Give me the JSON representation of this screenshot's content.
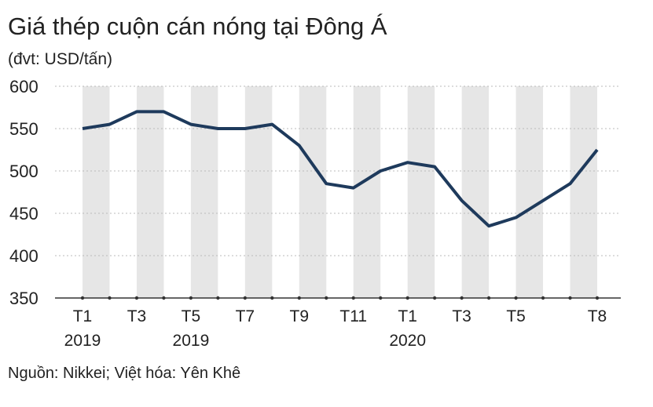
{
  "chart_data": {
    "type": "line",
    "title": "Giá thép cuộn cán nóng tại Đông Á",
    "subtitle": "(đvt: USD/tấn)",
    "source": "Nguồn: Nikkei; Việt hóa: Yên Khê",
    "categories": [
      [
        "T1",
        "2019"
      ],
      null,
      [
        "T3"
      ],
      null,
      [
        "T5",
        "2019"
      ],
      null,
      [
        "T7"
      ],
      null,
      [
        "T9"
      ],
      null,
      [
        "T11"
      ],
      null,
      [
        "T1",
        "2020"
      ],
      null,
      [
        "T3"
      ],
      null,
      [
        "T5"
      ],
      null,
      null,
      [
        "T8"
      ]
    ],
    "series": [
      {
        "name": "Giá",
        "color": "#1e3a5c",
        "values": [
          550,
          555,
          570,
          570,
          555,
          550,
          550,
          555,
          530,
          485,
          480,
          500,
          510,
          505,
          465,
          435,
          445,
          465,
          485,
          525
        ]
      }
    ],
    "ylim": [
      350,
      600
    ],
    "yticks": [
      350,
      400,
      450,
      500,
      550,
      600
    ],
    "grid": true
  }
}
